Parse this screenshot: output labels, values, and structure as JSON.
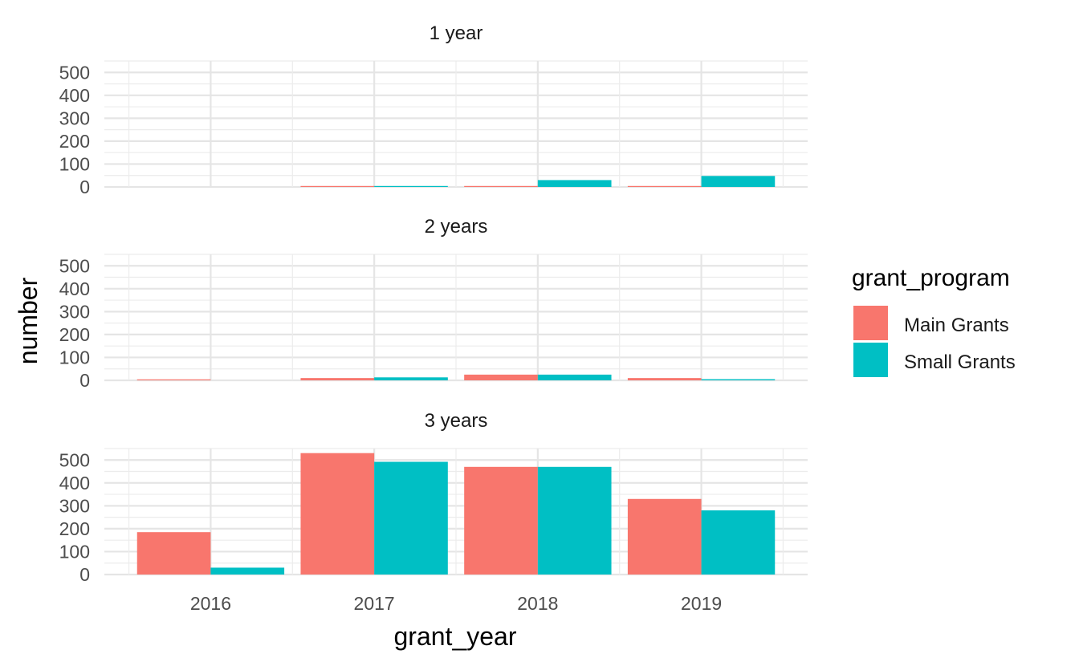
{
  "chart_data": {
    "type": "bar",
    "facet_by": "duration",
    "xlabel": "grant_year",
    "ylabel": "number",
    "categories": [
      "2016",
      "2017",
      "2018",
      "2019"
    ],
    "y_ticks": [
      0,
      100,
      200,
      300,
      400,
      500
    ],
    "ylim": [
      0,
      550
    ],
    "grid": true,
    "legend": {
      "title": "grant_program",
      "placement": "right",
      "entries": [
        {
          "label": "Main Grants",
          "color": "#F8766D"
        },
        {
          "label": "Small Grants",
          "color": "#00BFC4"
        }
      ]
    },
    "panels": [
      {
        "title": "1 year",
        "series": [
          {
            "name": "Main Grants",
            "values": [
              0,
              3,
              3,
              3
            ]
          },
          {
            "name": "Small Grants",
            "values": [
              0,
              2,
              30,
              48
            ]
          }
        ]
      },
      {
        "title": "2 years",
        "series": [
          {
            "name": "Main Grants",
            "values": [
              3,
              10,
              25,
              10
            ]
          },
          {
            "name": "Small Grants",
            "values": [
              0,
              13,
              25,
              5
            ]
          }
        ]
      },
      {
        "title": "3 years",
        "series": [
          {
            "name": "Main Grants",
            "values": [
              185,
              530,
              470,
              330
            ]
          },
          {
            "name": "Small Grants",
            "values": [
              30,
              492,
              470,
              280
            ]
          }
        ]
      }
    ]
  }
}
